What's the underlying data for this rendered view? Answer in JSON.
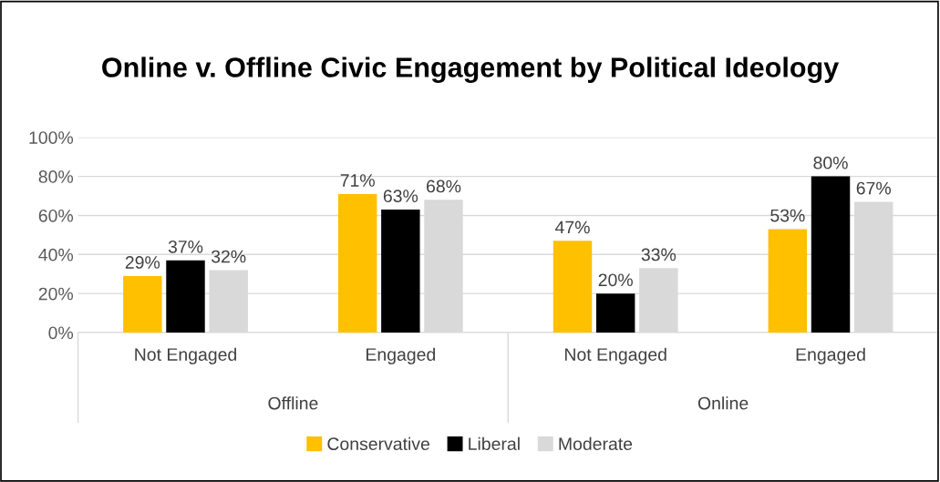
{
  "chart_data": {
    "type": "bar",
    "title": "Online v. Offline Civic Engagement by Political Ideology",
    "categories": [
      "Not Engaged",
      "Engaged",
      "Not Engaged",
      "Engaged"
    ],
    "series": [
      {
        "name": "Conservative",
        "color": "#ffc000",
        "values": [
          29,
          71,
          47,
          53
        ]
      },
      {
        "name": "Liberal",
        "color": "#000000",
        "values": [
          37,
          63,
          20,
          80
        ]
      },
      {
        "name": "Moderate",
        "color": "#d9d9d9",
        "values": [
          32,
          68,
          33,
          67
        ]
      }
    ],
    "value_labels": [
      [
        "29%",
        "71%",
        "47%",
        "53%"
      ],
      [
        "37%",
        "63%",
        "20%",
        "80%"
      ],
      [
        "32%",
        "68%",
        "33%",
        "67%"
      ]
    ],
    "annotations": [
      "Offline",
      "Online"
    ],
    "ylim": [
      0,
      100
    ],
    "yticks": [
      {
        "value": 0,
        "label": "0%"
      },
      {
        "value": 20,
        "label": "20%"
      },
      {
        "value": 40,
        "label": "40%"
      },
      {
        "value": 60,
        "label": "60%"
      },
      {
        "value": 80,
        "label": "80%"
      },
      {
        "value": 100,
        "label": "100%"
      }
    ],
    "grid": "y",
    "legend": "bottom"
  }
}
